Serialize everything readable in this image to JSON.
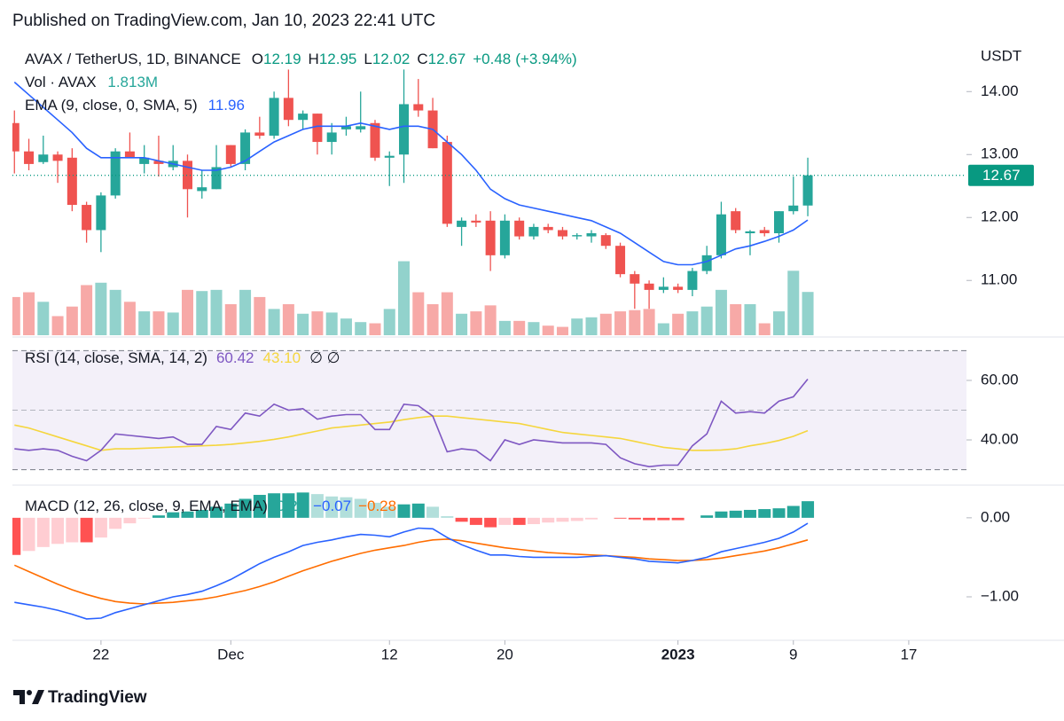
{
  "chart_data": {
    "type": "candlestick",
    "header": "Published on TradingView.com, Jan 10, 2023 22:41 UTC",
    "symbol": "AVAX / TetherUS, 1D, BINANCE",
    "ohlc_letters": [
      "O",
      "H",
      "L",
      "C"
    ],
    "change": {
      "value": 0.48,
      "label": "+0.48"
    },
    "change_pct": {
      "value": 3.94,
      "label": "(+3.94%)"
    },
    "currency": "USDT",
    "footer": "TradingView",
    "x": [
      "2022-11-16",
      "2022-11-17",
      "2022-11-18",
      "2022-11-19",
      "2022-11-20",
      "2022-11-21",
      "2022-11-22",
      "2022-11-23",
      "2022-11-24",
      "2022-11-25",
      "2022-11-26",
      "2022-11-27",
      "2022-11-28",
      "2022-11-29",
      "2022-11-30",
      "2022-12-01",
      "2022-12-02",
      "2022-12-03",
      "2022-12-04",
      "2022-12-05",
      "2022-12-06",
      "2022-12-07",
      "2022-12-08",
      "2022-12-09",
      "2022-12-10",
      "2022-12-11",
      "2022-12-12",
      "2022-12-13",
      "2022-12-14",
      "2022-12-15",
      "2022-12-16",
      "2022-12-17",
      "2022-12-18",
      "2022-12-19",
      "2022-12-20",
      "2022-12-21",
      "2022-12-22",
      "2022-12-23",
      "2022-12-24",
      "2022-12-25",
      "2022-12-26",
      "2022-12-27",
      "2022-12-28",
      "2022-12-29",
      "2022-12-30",
      "2022-12-31",
      "2023-01-01",
      "2023-01-02",
      "2023-01-03",
      "2023-01-04",
      "2023-01-05",
      "2023-01-06",
      "2023-01-07",
      "2023-01-08",
      "2023-01-09",
      "2023-01-10"
    ],
    "xlim": [
      "2022-11-15",
      "2023-01-21"
    ],
    "xticks": [
      {
        "value": "2022-11-22",
        "label": "22"
      },
      {
        "value": "2022-12-01",
        "label": "Dec"
      },
      {
        "value": "2022-12-12",
        "label": "12"
      },
      {
        "value": "2022-12-20",
        "label": "20"
      },
      {
        "value": "2023-01-01",
        "label": "2023"
      },
      {
        "value": "2023-01-09",
        "label": "9"
      },
      {
        "value": "2023-01-17",
        "label": "17"
      }
    ],
    "ylim": [
      10.13,
      14.68
    ],
    "yticks": [
      {
        "value": 14,
        "label": "14.00"
      },
      {
        "value": 13,
        "label": "13.00"
      },
      {
        "value": 12,
        "label": "12.00"
      },
      {
        "value": 11,
        "label": "11.00"
      }
    ],
    "candles": {
      "up_color": "#26a69a",
      "down_color": "#ef5350",
      "open": [
        13.5,
        13.05,
        12.88,
        13.0,
        12.95,
        12.2,
        11.8,
        12.35,
        13.05,
        12.85,
        12.9,
        12.8,
        12.9,
        12.42,
        12.45,
        13.15,
        12.85,
        13.35,
        13.3,
        13.9,
        13.55,
        13.65,
        13.2,
        13.4,
        13.4,
        13.5,
        12.95,
        13.0,
        13.8,
        13.7,
        13.2,
        11.85,
        11.95,
        11.95,
        11.4,
        11.95,
        11.7,
        11.85,
        11.8,
        11.7,
        11.7,
        11.72,
        11.55,
        11.1,
        10.95,
        10.85,
        10.9,
        10.85,
        11.15,
        11.4,
        12.1,
        11.75,
        11.8,
        11.75,
        12.1,
        12.19
      ],
      "high": [
        13.7,
        13.25,
        13.3,
        13.05,
        13.1,
        12.25,
        12.4,
        13.1,
        13.35,
        13.15,
        13.3,
        13.15,
        13.0,
        12.75,
        13.15,
        13.15,
        13.4,
        13.6,
        14.0,
        14.35,
        13.7,
        13.65,
        13.5,
        13.6,
        14.0,
        13.55,
        13.05,
        14.35,
        14.2,
        13.9,
        13.3,
        12.0,
        12.05,
        12.1,
        12.05,
        12.0,
        11.9,
        11.9,
        11.85,
        11.75,
        11.8,
        11.75,
        11.6,
        11.15,
        11.0,
        11.05,
        10.95,
        11.2,
        11.55,
        12.25,
        12.15,
        11.8,
        11.85,
        12.1,
        12.65,
        12.95
      ],
      "low": [
        12.7,
        12.75,
        12.85,
        12.55,
        12.1,
        11.6,
        11.45,
        12.3,
        12.95,
        12.7,
        12.65,
        12.75,
        12.0,
        12.3,
        12.45,
        12.8,
        12.75,
        13.25,
        13.25,
        13.45,
        13.4,
        13.0,
        13.0,
        13.3,
        13.35,
        12.9,
        12.5,
        12.55,
        13.6,
        13.1,
        11.85,
        11.55,
        11.85,
        11.15,
        11.35,
        11.65,
        11.65,
        11.75,
        11.65,
        11.65,
        11.6,
        11.5,
        11.05,
        10.55,
        10.55,
        10.8,
        10.8,
        10.75,
        11.1,
        11.35,
        11.75,
        11.4,
        11.7,
        11.6,
        12.05,
        12.02
      ],
      "close": [
        13.05,
        12.85,
        13.0,
        12.9,
        12.2,
        11.8,
        12.35,
        13.05,
        12.95,
        12.95,
        12.85,
        12.9,
        12.45,
        12.48,
        12.8,
        12.85,
        13.35,
        13.3,
        13.9,
        13.55,
        13.65,
        13.2,
        13.35,
        13.45,
        13.45,
        12.95,
        12.98,
        13.8,
        13.7,
        13.1,
        11.9,
        11.95,
        11.92,
        11.4,
        11.95,
        11.7,
        11.85,
        11.8,
        11.7,
        11.72,
        11.75,
        11.55,
        11.1,
        10.95,
        10.85,
        10.9,
        10.85,
        11.15,
        11.4,
        12.05,
        11.8,
        11.78,
        11.75,
        12.1,
        12.19,
        12.67
      ]
    },
    "volume": {
      "name": "Vol · AVAX",
      "last_label": "1.813M",
      "ylim": [
        0,
        12
      ],
      "up_color": "rgba(38,166,154,0.5)",
      "down_color": "rgba(239,83,80,0.5)",
      "values": [
        1.6,
        1.8,
        1.4,
        0.8,
        1.2,
        2.1,
        2.2,
        1.9,
        1.4,
        1.0,
        1.0,
        0.95,
        1.9,
        1.85,
        1.9,
        1.3,
        1.9,
        1.6,
        1.1,
        1.3,
        0.9,
        1.0,
        0.95,
        0.7,
        0.55,
        0.5,
        1.1,
        3.1,
        1.8,
        1.3,
        1.8,
        0.9,
        1.0,
        1.25,
        0.6,
        0.6,
        0.55,
        0.4,
        0.35,
        0.7,
        0.75,
        0.9,
        1.0,
        1.05,
        1.1,
        0.5,
        0.9,
        1.0,
        1.2,
        1.9,
        1.3,
        1.3,
        0.5,
        1.0,
        2.7,
        1.813
      ]
    },
    "ema": {
      "name": "EMA (9, close, 0, SMA, 5)",
      "color": "#2962ff",
      "values": [
        14.15,
        13.95,
        13.75,
        13.55,
        13.35,
        13.1,
        12.95,
        12.95,
        12.95,
        12.95,
        12.9,
        12.85,
        12.8,
        12.75,
        12.75,
        12.8,
        12.9,
        13.05,
        13.2,
        13.3,
        13.4,
        13.45,
        13.45,
        13.45,
        13.5,
        13.45,
        13.4,
        13.45,
        13.45,
        13.4,
        13.2,
        13.0,
        12.75,
        12.45,
        12.3,
        12.2,
        12.15,
        12.1,
        12.05,
        12.0,
        11.95,
        11.85,
        11.75,
        11.6,
        11.45,
        11.3,
        11.25,
        11.25,
        11.3,
        11.4,
        11.5,
        11.55,
        11.62,
        11.7,
        11.8,
        11.96
      ]
    },
    "rsi": {
      "name": "RSI (14, close, SMA, 14, 2)",
      "color": "#7e57c2",
      "extra": "∅ ∅",
      "ylim": [
        25.4,
        73.7
      ],
      "yticks": [
        {
          "value": 60,
          "label": "60.00"
        },
        {
          "value": 40,
          "label": "40.00"
        }
      ],
      "bands": [
        30,
        50,
        70
      ],
      "band_fill": "rgba(126,87,194,0.09)",
      "values": [
        37,
        36.5,
        37,
        36.5,
        34.5,
        33,
        36.5,
        42,
        41.5,
        41,
        40.5,
        41,
        38.5,
        38.5,
        44.5,
        43.5,
        49,
        48,
        52,
        50,
        50.5,
        47,
        48,
        48.5,
        48.5,
        43.5,
        43.5,
        52,
        51.5,
        48,
        36,
        37,
        36.5,
        33,
        40,
        38.5,
        40,
        39.5,
        39,
        39,
        39,
        38.5,
        34,
        32,
        31,
        31.5,
        31.5,
        38,
        42,
        53,
        49,
        49.5,
        49,
        53,
        54.5,
        60.42
      ],
      "sma": {
        "color": "#f5d63d",
        "last_label": "43.10",
        "values": [
          45,
          44,
          42.5,
          41,
          39.5,
          38,
          36.5,
          37,
          37,
          37.2,
          37.4,
          37.6,
          37.8,
          38,
          38.2,
          38.5,
          39,
          39.5,
          40.2,
          41,
          42,
          43,
          44,
          44.5,
          45,
          45.5,
          46,
          46.8,
          47.5,
          48,
          48,
          47.5,
          47,
          46.5,
          46,
          45.5,
          44.5,
          43.5,
          42.5,
          42,
          41.5,
          41,
          40.5,
          39.5,
          38.5,
          37.5,
          37,
          36.5,
          36.5,
          36.6,
          37,
          38,
          38.8,
          39.8,
          41.2,
          43.1
        ]
      }
    },
    "macd": {
      "name": "MACD (12, 26, close, 9, EMA, EMA)",
      "ylim": [
        -1.55,
        0.38
      ],
      "yticks": [
        {
          "value": 0,
          "label": "0.00"
        },
        {
          "value": -1,
          "label": "−1.00"
        }
      ],
      "histogram": {
        "colors": {
          "pos_up": "#26a69a",
          "pos_down": "#b2dfdb",
          "neg_down": "#ff5252",
          "neg_up": "#ffcdd2"
        },
        "values": [
          -0.47,
          -0.42,
          -0.37,
          -0.33,
          -0.31,
          -0.31,
          -0.25,
          -0.14,
          -0.07,
          -0.01,
          0.03,
          0.07,
          0.08,
          0.1,
          0.14,
          0.18,
          0.24,
          0.29,
          0.31,
          0.31,
          0.32,
          0.3,
          0.27,
          0.26,
          0.24,
          0.19,
          0.14,
          0.17,
          0.18,
          0.14,
          0.02,
          -0.05,
          -0.09,
          -0.12,
          -0.09,
          -0.09,
          -0.08,
          -0.06,
          -0.05,
          -0.04,
          -0.02,
          0,
          -0.01,
          -0.02,
          -0.03,
          -0.03,
          -0.03,
          0,
          0.03,
          0.08,
          0.09,
          0.1,
          0.11,
          0.12,
          0.15,
          0.21
        ]
      },
      "macd": {
        "color": "#2962ff",
        "last_label": "−0.07",
        "values": [
          -1.07,
          -1.1,
          -1.13,
          -1.17,
          -1.22,
          -1.28,
          -1.27,
          -1.2,
          -1.15,
          -1.1,
          -1.05,
          -1.0,
          -0.97,
          -0.93,
          -0.86,
          -0.78,
          -0.68,
          -0.58,
          -0.5,
          -0.43,
          -0.35,
          -0.31,
          -0.28,
          -0.24,
          -0.21,
          -0.22,
          -0.24,
          -0.18,
          -0.13,
          -0.14,
          -0.25,
          -0.34,
          -0.41,
          -0.47,
          -0.47,
          -0.49,
          -0.5,
          -0.5,
          -0.5,
          -0.5,
          -0.49,
          -0.48,
          -0.5,
          -0.52,
          -0.55,
          -0.56,
          -0.57,
          -0.54,
          -0.5,
          -0.43,
          -0.39,
          -0.35,
          -0.31,
          -0.26,
          -0.18,
          -0.07
        ]
      },
      "signal": {
        "color": "#ff6d00",
        "last_label": "−0.28",
        "values": [
          -0.6,
          -0.68,
          -0.76,
          -0.84,
          -0.91,
          -0.97,
          -1.02,
          -1.06,
          -1.08,
          -1.09,
          -1.08,
          -1.07,
          -1.05,
          -1.03,
          -1.0,
          -0.96,
          -0.92,
          -0.87,
          -0.81,
          -0.74,
          -0.67,
          -0.61,
          -0.55,
          -0.5,
          -0.45,
          -0.41,
          -0.38,
          -0.35,
          -0.31,
          -0.28,
          -0.27,
          -0.29,
          -0.32,
          -0.35,
          -0.38,
          -0.4,
          -0.42,
          -0.44,
          -0.45,
          -0.46,
          -0.47,
          -0.48,
          -0.49,
          -0.5,
          -0.52,
          -0.53,
          -0.54,
          -0.54,
          -0.53,
          -0.51,
          -0.48,
          -0.45,
          -0.42,
          -0.38,
          -0.33,
          -0.28
        ]
      }
    }
  }
}
